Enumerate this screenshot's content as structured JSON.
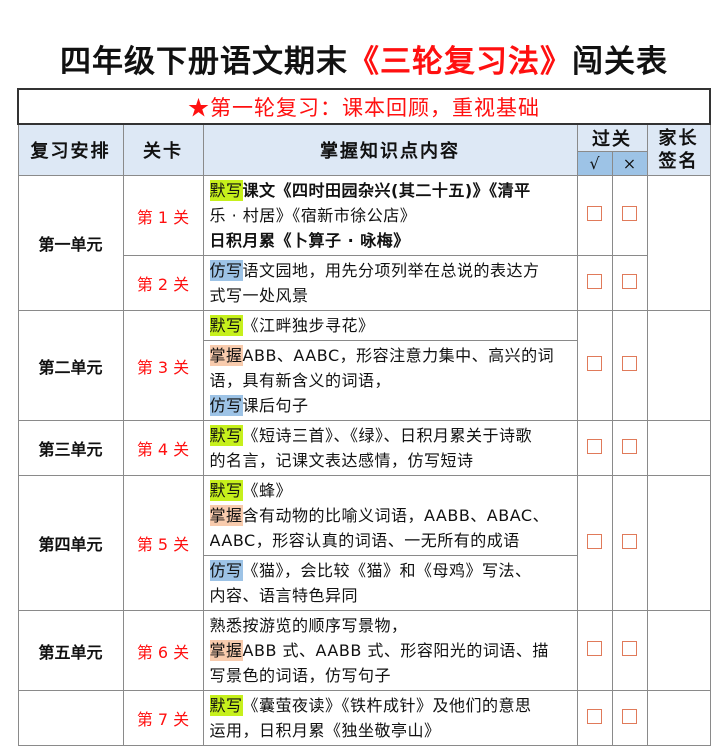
{
  "title": {
    "part1": "四年级下册语文期末",
    "part2": "《三轮复习法》",
    "part3": "闯关表"
  },
  "banner": "★第一轮复习：课本回顾，重视基础",
  "header": {
    "schedule": "复习安排",
    "level": "关卡",
    "content": "掌握知识点内容",
    "pass": "过关",
    "pass_yes": "√",
    "pass_no": "×",
    "parent_sign_1": "家长",
    "parent_sign_2": "签名"
  },
  "colors": {
    "red": "#ff1010",
    "tag_green": "#c6f01c",
    "tag_orange": "#f8cbad",
    "tag_blue": "#9dc3e6",
    "header_bg": "#dde8f5"
  },
  "rows": [
    {
      "unit": "第一单元",
      "levels": [
        {
          "label": "第 1 关",
          "parts": [
            [
              [
                {
                  "tag": "默写",
                  "color": "green"
                },
                {
                  "text": "课文《四时田园杂兴(其二十五)》《清平",
                  "bold": true
                }
              ],
              [
                {
                  "text": "乐 · 村居》《宿新市徐公店》"
                }
              ],
              [
                {
                  "text": "日积月累《卜算子 · 咏梅》",
                  "bold": true
                }
              ]
            ]
          ]
        },
        {
          "label": "第 2 关",
          "parts": [
            [
              [
                {
                  "tag": "仿写",
                  "color": "blue"
                },
                {
                  "text": "语文园地，用先分项列举在总说的表达方"
                }
              ],
              [
                {
                  "text": "式写一处风景"
                }
              ]
            ]
          ]
        }
      ]
    },
    {
      "unit": "第二单元",
      "levels": [
        {
          "label": "第 3 关",
          "parts": [
            [
              [
                {
                  "tag": "默写",
                  "color": "green"
                },
                {
                  "text": "《江畔独步寻花》"
                }
              ]
            ],
            [
              [
                {
                  "tag": "掌握",
                  "color": "orange"
                },
                {
                  "text": "ABB、AABC，形容注意力集中、高兴的词"
                }
              ],
              [
                {
                  "text": "语，具有新含义的词语，"
                }
              ],
              [
                {
                  "tag": "仿写",
                  "color": "blue"
                },
                {
                  "text": "课后句子"
                }
              ]
            ]
          ]
        }
      ]
    },
    {
      "unit": "第三单元",
      "levels": [
        {
          "label": "第 4 关",
          "parts": [
            [
              [
                {
                  "tag": "默写",
                  "color": "green"
                },
                {
                  "text": "《短诗三首》、《绿》、日积月累关于诗歌"
                }
              ],
              [
                {
                  "text": "的名言，记课文表达感情，仿写短诗"
                }
              ]
            ]
          ]
        }
      ]
    },
    {
      "unit": "第四单元",
      "levels": [
        {
          "label": "第 5 关",
          "parts": [
            [
              [
                {
                  "tag": "默写",
                  "color": "green"
                },
                {
                  "text": "《蜂》"
                }
              ],
              [
                {
                  "tag": "掌握",
                  "color": "orange"
                },
                {
                  "text": "含有动物的比喻义词语，AABB、ABAC、"
                }
              ],
              [
                {
                  "text": "AABC，形容认真的词语、一无所有的成语"
                }
              ]
            ],
            [
              [
                {
                  "tag": "仿写",
                  "color": "blue"
                },
                {
                  "text": "《猫》，会比较《猫》和《母鸡》写法、"
                }
              ],
              [
                {
                  "text": "内容、语言特色异同"
                }
              ]
            ]
          ]
        }
      ]
    },
    {
      "unit": "第五单元",
      "levels": [
        {
          "label": "第 6 关",
          "parts": [
            [
              [
                {
                  "text": "熟悉按游览的顺序写景物，"
                }
              ],
              [
                {
                  "tag": "掌握",
                  "color": "orange"
                },
                {
                  "text": "ABB 式、AABB 式、形容阳光的词语、描"
                }
              ],
              [
                {
                  "text": "写景色的词语，仿写句子"
                }
              ]
            ]
          ]
        }
      ]
    },
    {
      "unit": "",
      "levels": [
        {
          "label": "第 7 关",
          "parts": [
            [
              [
                {
                  "tag": "默写",
                  "color": "green"
                },
                {
                  "text": "《囊萤夜读》《铁杵成针》及他们的意思"
                }
              ],
              [
                {
                  "text": "运用，日积月累《独坐敬亭山》"
                }
              ]
            ]
          ]
        }
      ]
    }
  ]
}
